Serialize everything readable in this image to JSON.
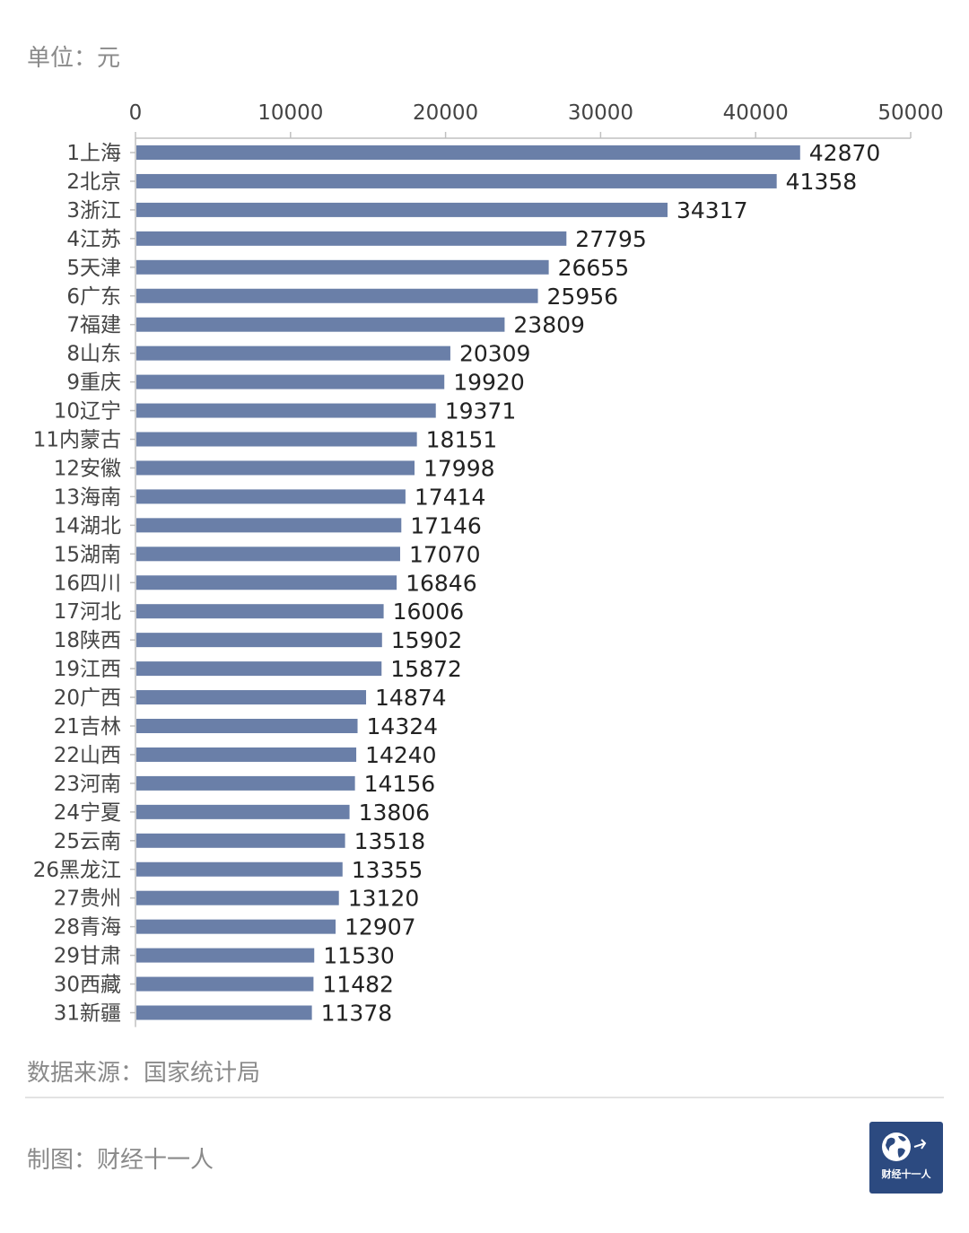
{
  "header": {
    "unit_label": "单位：元"
  },
  "footer": {
    "source_label": "数据来源：国家统计局",
    "maker_label": "制图：财经十一人",
    "logo_text": "财经十一人"
  },
  "colors": {
    "bar": "#6a7fa8",
    "axis": "#c0c0c0",
    "tick_text": "#444444",
    "value_text": "#222222"
  },
  "chart_data": {
    "type": "bar",
    "orientation": "horizontal",
    "xlim": [
      0,
      50000
    ],
    "xticks": [
      0,
      10000,
      20000,
      30000,
      40000,
      50000
    ],
    "categories": [
      "1上海",
      "2北京",
      "3浙江",
      "4江苏",
      "5天津",
      "6广东",
      "7福建",
      "8山东",
      "9重庆",
      "10辽宁",
      "11内蒙古",
      "12安徽",
      "13海南",
      "14湖北",
      "15湖南",
      "16四川",
      "17河北",
      "18陕西",
      "19江西",
      "20广西",
      "21吉林",
      "22山西",
      "23河南",
      "24宁夏",
      "25云南",
      "26黑龙江",
      "27贵州",
      "28青海",
      "29甘肃",
      "30西藏",
      "31新疆"
    ],
    "values": [
      42870,
      41358,
      34317,
      27795,
      26655,
      25956,
      23809,
      20309,
      19920,
      19371,
      18151,
      17998,
      17414,
      17146,
      17070,
      16846,
      16006,
      15902,
      15872,
      14874,
      14324,
      14240,
      14156,
      13806,
      13518,
      13355,
      13120,
      12907,
      11530,
      11482,
      11378
    ],
    "axis_position": "top",
    "grid": false,
    "legend": "none"
  }
}
